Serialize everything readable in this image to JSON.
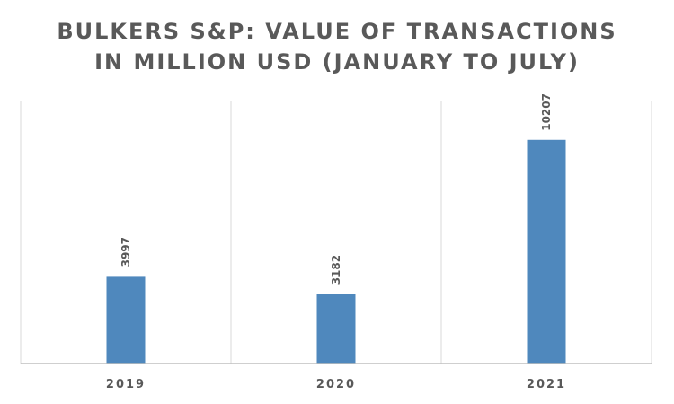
{
  "chart_data": {
    "type": "bar",
    "title": "BULKERS S&P: VALUE OF TRANSACTIONS IN MILLION USD (JANUARY TO JULY)",
    "title_lines": [
      "BULKERS S&P: VALUE OF TRANSACTIONS",
      "IN MILLION USD (JANUARY TO JULY)"
    ],
    "categories": [
      "2019",
      "2020",
      "2021"
    ],
    "values": [
      3997,
      3182,
      10207
    ],
    "data_labels": [
      "3997",
      "3182",
      "10207"
    ],
    "xlabel": "",
    "ylabel": "",
    "ylim": [
      0,
      12000
    ],
    "grid": "vertical",
    "legend": "none",
    "bar_color": "#4F88BD",
    "grid_color": "#D9D9D9",
    "axis_color": "#BFBFBF",
    "text_color": "#595959"
  }
}
